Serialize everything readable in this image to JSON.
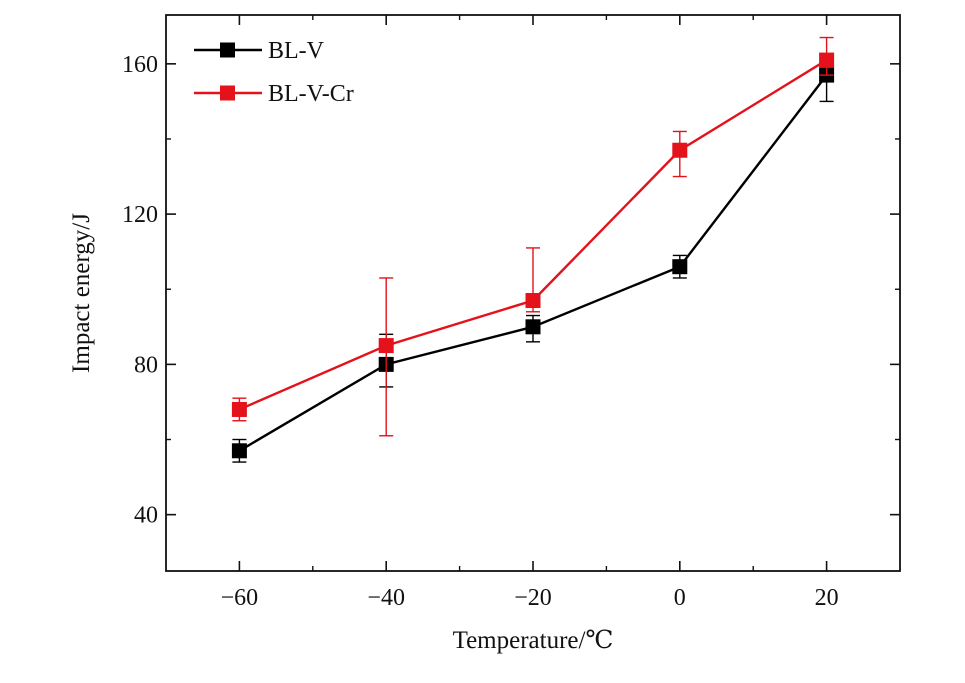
{
  "chart_data": {
    "type": "line",
    "xlabel": "Temperature/℃",
    "ylabel": "Impact energy/J",
    "xlim": [
      -70,
      30
    ],
    "ylim": [
      25,
      173
    ],
    "x": [
      -60,
      -40,
      -20,
      0,
      20
    ],
    "xticks": [
      -60,
      -40,
      -20,
      0,
      20
    ],
    "xtick_labels": [
      "−60",
      "−40",
      "−20",
      "0",
      "20"
    ],
    "yticks": [
      40,
      80,
      120,
      160
    ],
    "ytick_labels": [
      "40",
      "80",
      "120",
      "160"
    ],
    "legend_position": "top-left",
    "grid": false,
    "series": [
      {
        "name": "BL-V",
        "color": "#000000",
        "marker": "square",
        "values": [
          57,
          80,
          90,
          106,
          157
        ],
        "error_low": [
          3,
          6,
          4,
          3,
          7
        ],
        "error_high": [
          3,
          8,
          3,
          3,
          3
        ]
      },
      {
        "name": "BL-V-Cr",
        "color": "#e3121b",
        "marker": "square",
        "values": [
          68,
          85,
          97,
          137,
          161
        ],
        "error_low": [
          3,
          24,
          3,
          7,
          4
        ],
        "error_high": [
          3,
          18,
          14,
          5,
          6
        ]
      }
    ]
  }
}
